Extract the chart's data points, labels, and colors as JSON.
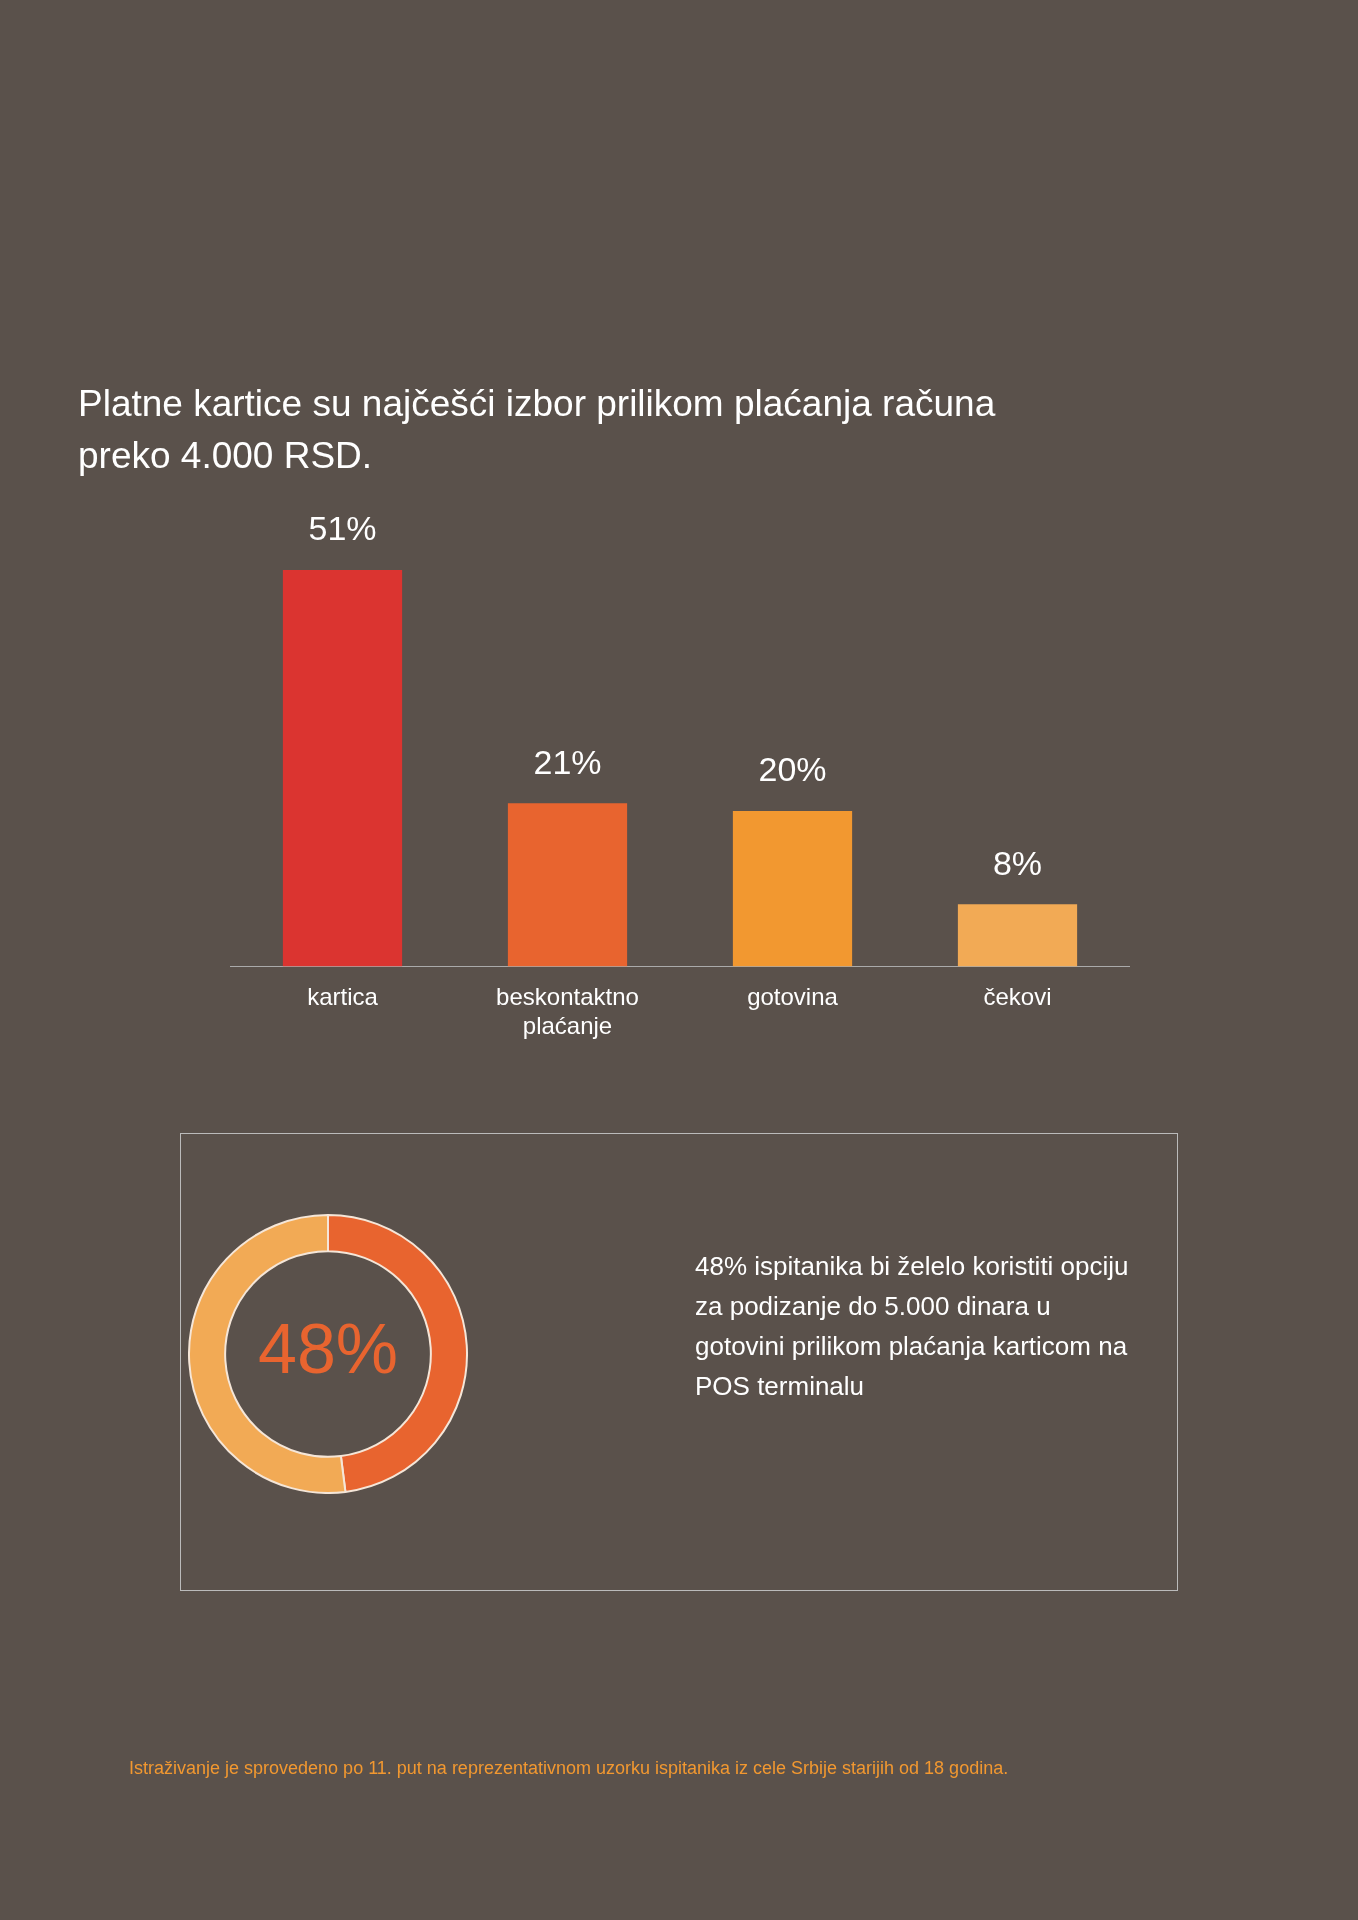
{
  "chart_data": [
    {
      "type": "bar",
      "title": "Platne kartice su najčešći izbor prilikom plaćanja računa preko 4.000 RSD.",
      "categories": [
        "kartica",
        "beskontaktno plaćanje",
        "gotovina",
        "čekovi"
      ],
      "values": [
        51,
        21,
        20,
        8
      ],
      "colors": [
        "#db3430",
        "#e8642f",
        "#f29830",
        "#f2aa55"
      ],
      "value_labels": [
        "51%",
        "21%",
        "20%",
        "8%"
      ],
      "grid": false
    },
    {
      "type": "donut",
      "categories": [
        null,
        null
      ],
      "values": [
        48,
        52
      ],
      "colors": [
        "#e8642f",
        "#f2aa55"
      ],
      "value_labels": [
        "48%",
        null
      ],
      "annotations": [
        "48% ispitanika bi želelo koristiti opciju za podizanje do 5.000 dinara u gotovini prilikom plaćanja karticom na POS terminalu",
        "Istraživanje je sprovedeno po 11. put na reprezentativnom uzorku ispitanika iz cele Srbije starijih od 18 godina."
      ]
    }
  ]
}
